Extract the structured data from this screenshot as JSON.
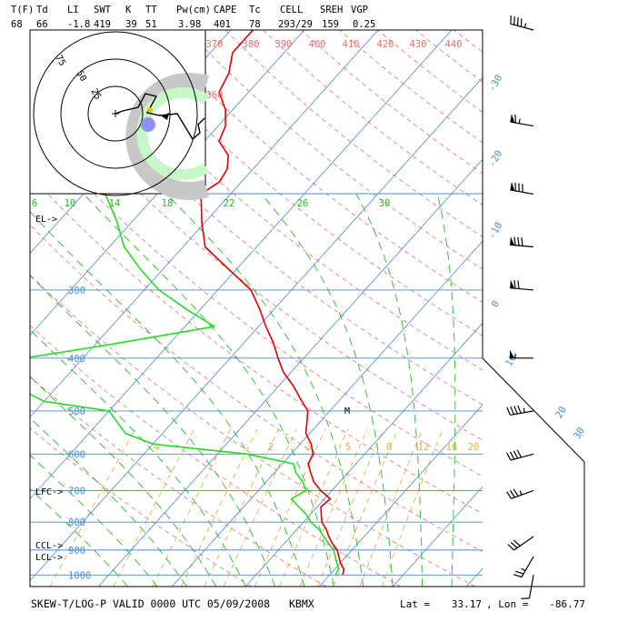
{
  "header": {
    "labels": [
      "T(F)",
      "Td",
      "LI",
      "SWT",
      "K",
      "TT",
      "Pw(cm)",
      "CAPE",
      "Tc",
      "CELL",
      "SREH",
      "VGP"
    ],
    "values": [
      "68",
      "66",
      "-1.8",
      "419",
      "39",
      "51",
      "3.98",
      "401",
      "78",
      "293/29",
      "159",
      "0.25"
    ]
  },
  "footer": {
    "title": "SKEW-T/LOG-P VALID 0000 UTC 05/09/2008",
    "station": "KBMX",
    "lat_label": "Lat =",
    "lat_value": "33.17",
    "lon_label": ", Lon =",
    "lon_value": "-86.77"
  },
  "chart_data": {
    "type": "line",
    "title": "SKEW-T/LOG-P VALID 0000 UTC 05/09/2008",
    "x_scale": "skewed temperature (deg C)",
    "y_scale": "log pressure (mb)",
    "ylim": [
      1000,
      100
    ],
    "pressure_ticks": [
      "1000",
      "900",
      "800",
      "700",
      "600",
      "500",
      "400",
      "300"
    ],
    "pressure_values": [
      1000,
      900,
      800,
      700,
      600,
      500,
      400,
      300
    ],
    "temperature_ticks": [
      "-30",
      "-20",
      "-10",
      "0",
      "10",
      "20",
      "30"
    ],
    "temperature_values": [
      -30,
      -20,
      -10,
      0,
      10,
      20,
      30
    ],
    "theta_labels": [
      "360",
      "370",
      "380",
      "390",
      "400",
      "410",
      "420",
      "430",
      "440"
    ],
    "theta_e_labels": [
      "6",
      "10",
      "14",
      "18",
      "22",
      "26",
      "30"
    ],
    "mixing_ratio_labels": [
      "4",
      "2",
      "3",
      "5",
      "8",
      "12",
      "16",
      "20"
    ],
    "level_markers": [
      "EL->",
      "LFC->",
      "CCL->",
      "LCL->",
      "M"
    ],
    "hodograph_rings": [
      "25",
      "50",
      "75"
    ],
    "series": [
      {
        "name": "Temperature",
        "color": "#e00000",
        "points": [
          [
            1000,
            21.8
          ],
          [
            975,
            21.2
          ],
          [
            950,
            20
          ],
          [
            925,
            19
          ],
          [
            900,
            18
          ],
          [
            875,
            16.5
          ],
          [
            850,
            15.2
          ],
          [
            825,
            14
          ],
          [
            800,
            12.5
          ],
          [
            775,
            11.5
          ],
          [
            750,
            10.5
          ],
          [
            725,
            10.8
          ],
          [
            700,
            8.5
          ],
          [
            675,
            6.5
          ],
          [
            650,
            5
          ],
          [
            625,
            3.5
          ],
          [
            600,
            3
          ],
          [
            575,
            1.5
          ],
          [
            550,
            -0.5
          ],
          [
            500,
            -3
          ],
          [
            475,
            -5.5
          ],
          [
            450,
            -8
          ],
          [
            425,
            -11
          ],
          [
            400,
            -13.5
          ],
          [
            375,
            -16
          ],
          [
            350,
            -19
          ],
          [
            325,
            -22
          ],
          [
            300,
            -25.5
          ],
          [
            275,
            -31
          ],
          [
            250,
            -37
          ],
          [
            225,
            -40.5
          ],
          [
            200,
            -44
          ],
          [
            190,
            -43
          ],
          [
            180,
            -43.5
          ],
          [
            170,
            -45
          ],
          [
            160,
            -48
          ],
          [
            150,
            -49
          ],
          [
            140,
            -51
          ],
          [
            130,
            -54
          ],
          [
            120,
            -55
          ],
          [
            110,
            -57
          ],
          [
            100,
            -57
          ]
        ]
      },
      {
        "name": "Dewpoint",
        "color": "#22dd22",
        "points": [
          [
            1000,
            20.8
          ],
          [
            975,
            20.5
          ],
          [
            950,
            19.5
          ],
          [
            925,
            18.5
          ],
          [
            900,
            17.5
          ],
          [
            875,
            16
          ],
          [
            850,
            14.5
          ],
          [
            825,
            13
          ],
          [
            800,
            11
          ],
          [
            775,
            9.5
          ],
          [
            750,
            7.5
          ],
          [
            725,
            5.5
          ],
          [
            700,
            6.5
          ],
          [
            675,
            5
          ],
          [
            650,
            3
          ],
          [
            625,
            1.5
          ],
          [
            600,
            -6
          ],
          [
            575,
            -20
          ],
          [
            550,
            -25
          ],
          [
            500,
            -30
          ],
          [
            480,
            -40
          ],
          [
            450,
            -46
          ],
          [
            425,
            -48
          ],
          [
            400,
            -48
          ],
          [
            380,
            -39
          ],
          [
            350,
            -26
          ],
          [
            325,
            -32
          ],
          [
            300,
            -38
          ],
          [
            275,
            -43
          ],
          [
            250,
            -48
          ],
          [
            225,
            -52
          ],
          [
            200,
            -57
          ],
          [
            180,
            -60
          ],
          [
            160,
            -63
          ],
          [
            140,
            -66
          ],
          [
            120,
            -70
          ],
          [
            100,
            -73
          ]
        ]
      }
    ],
    "hodograph": {
      "series": [
        {
          "name": "winds",
          "color": "#000000"
        }
      ]
    },
    "wind_barbs": [
      {
        "p": 1000,
        "dir": 190,
        "spd": 10
      },
      {
        "p": 925,
        "dir": 210,
        "spd": 25
      },
      {
        "p": 850,
        "dir": 235,
        "spd": 30
      },
      {
        "p": 700,
        "dir": 250,
        "spd": 35
      },
      {
        "p": 600,
        "dir": 255,
        "spd": 40
      },
      {
        "p": 500,
        "dir": 260,
        "spd": 45
      },
      {
        "p": 400,
        "dir": 270,
        "spd": 55
      },
      {
        "p": 300,
        "dir": 275,
        "spd": 70
      },
      {
        "p": 250,
        "dir": 275,
        "spd": 80
      },
      {
        "p": 200,
        "dir": 280,
        "spd": 80
      },
      {
        "p": 150,
        "dir": 280,
        "spd": 65
      },
      {
        "p": 100,
        "dir": 285,
        "spd": 45
      }
    ]
  }
}
